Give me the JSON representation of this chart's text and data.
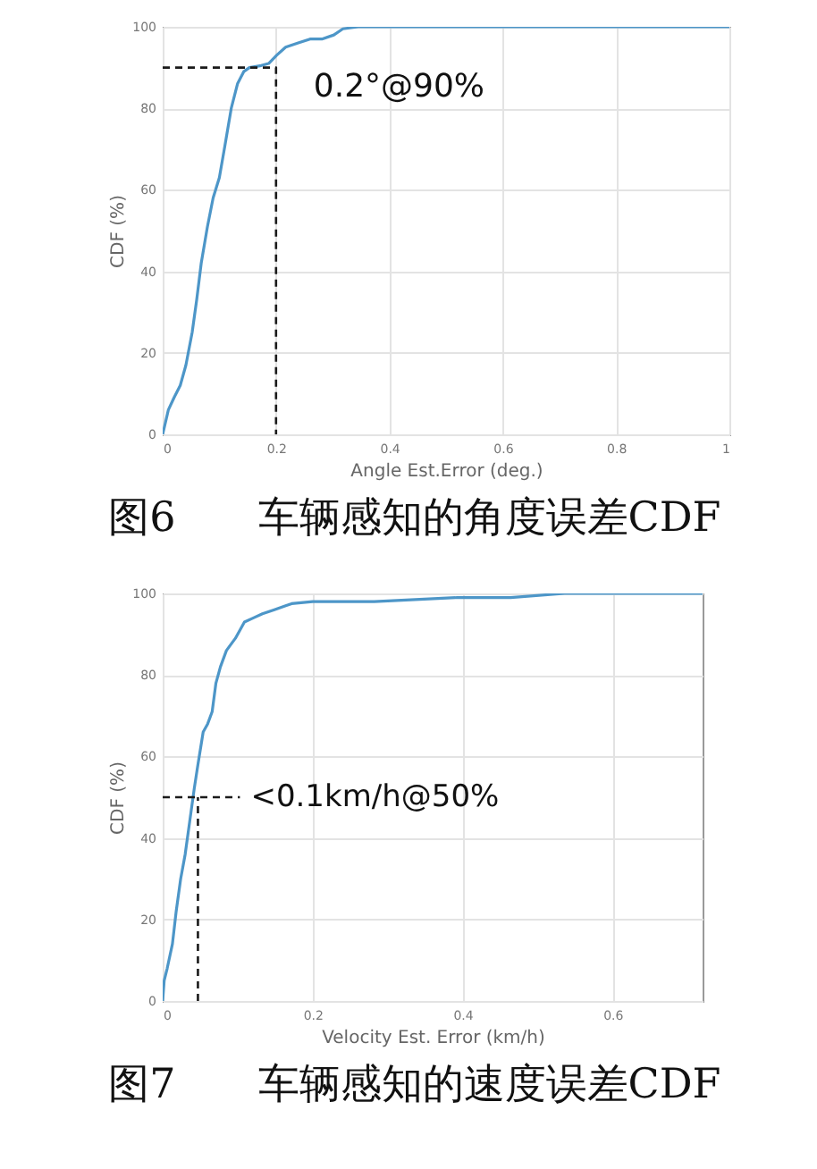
{
  "chart_data": [
    {
      "type": "line",
      "title": "图6　　车辆感知的角度误差CDF",
      "xlabel": "Angle Est.Error (deg.)",
      "ylabel": "CDF (%)",
      "xlim": [
        0,
        1
      ],
      "xticks": [
        0,
        0.2,
        0.4,
        0.6,
        0.8,
        1
      ],
      "ylim": [
        0,
        100
      ],
      "yticks": [
        0,
        20,
        40,
        60,
        80,
        100
      ],
      "grid": true,
      "series": [
        {
          "color": "#4d96c8",
          "x": [
            0,
            0.01,
            0.02,
            0.031,
            0.041,
            0.052,
            0.06,
            0.068,
            0.079,
            0.089,
            0.1,
            0.11,
            0.121,
            0.132,
            0.143,
            0.153,
            0.174,
            0.187,
            0.201,
            0.217,
            0.238,
            0.26,
            0.281,
            0.302,
            0.318,
            0.345,
            1
          ],
          "values": [
            0,
            6,
            9,
            12,
            17,
            25,
            33,
            42,
            51,
            58,
            63,
            71,
            80,
            86,
            89,
            90,
            90.5,
            91,
            93,
            95,
            96,
            97,
            97,
            98,
            99.5,
            100,
            100
          ]
        },
        {
          "color": "#1a1a1a",
          "line_style": "dashed",
          "x": [
            0,
            0.2,
            0.2
          ],
          "values": [
            90,
            90,
            0
          ]
        }
      ],
      "annotations": [
        {
          "text": "0.2°@90%",
          "x": 0.2,
          "y": 90
        }
      ]
    },
    {
      "type": "line",
      "title": "图7　　车辆感知的速度误差CDF",
      "xlabel": "Velocity Est. Error (km/h)",
      "ylabel": "CDF (%)",
      "xlim": [
        0,
        0.72
      ],
      "xticks": [
        0,
        0.2,
        0.4,
        0.6
      ],
      "ylim": [
        0,
        100
      ],
      "yticks": [
        0,
        20,
        40,
        60,
        80,
        100
      ],
      "grid": true,
      "series": [
        {
          "color": "#4d96c8",
          "x": [
            0,
            0.002,
            0.006,
            0.013,
            0.018,
            0.024,
            0.03,
            0.036,
            0.042,
            0.047,
            0.054,
            0.06,
            0.066,
            0.071,
            0.077,
            0.085,
            0.097,
            0.109,
            0.121,
            0.133,
            0.149,
            0.164,
            0.172,
            0.2,
            0.282,
            0.393,
            0.464,
            0.536,
            0.6,
            0.72
          ],
          "values": [
            0,
            5,
            8,
            14,
            22,
            30,
            36,
            44,
            52,
            58,
            66,
            68,
            71,
            78,
            82,
            86,
            89,
            93,
            94,
            95,
            96,
            97,
            97.5,
            98,
            98,
            99,
            99,
            100,
            100,
            100
          ]
        },
        {
          "color": "#1a1a1a",
          "line_style": "dashed",
          "x": [
            0,
            0.103
          ],
          "values": [
            50,
            50
          ]
        },
        {
          "color": "#1a1a1a",
          "line_style": "dashed",
          "x": [
            0.047,
            0.047
          ],
          "values": [
            0,
            50
          ]
        }
      ],
      "annotations": [
        {
          "text": "<0.1km/h@50%",
          "x": 0.103,
          "y": 50
        }
      ]
    }
  ]
}
